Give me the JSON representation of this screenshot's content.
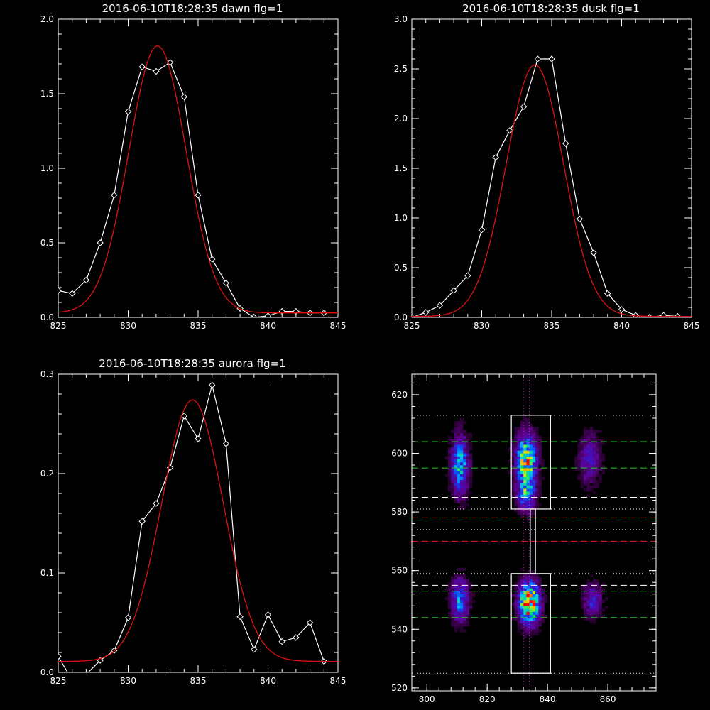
{
  "colors": {
    "background": "#000000",
    "axes": "#ffffff",
    "data_line": "#ffffff",
    "fit_line": "#dd1111",
    "marker": "#ffffff",
    "guide_green": "#22cc22",
    "guide_white": "#ffffff",
    "guide_red": "#dd2222",
    "guide_magenta": "#dd44dd",
    "box": "#ffffff"
  },
  "chart_data": [
    {
      "type": "line",
      "title": "2016-06-10T18:28:35 dawn flg=1",
      "xlim": [
        825,
        845
      ],
      "ylim": [
        0,
        2.0
      ],
      "xticks": [
        "825",
        "830",
        "835",
        "840",
        "845"
      ],
      "yticks": [
        "0.0",
        "0.5",
        "1.0",
        "1.5",
        "2.0"
      ],
      "grid": false,
      "series": [
        {
          "role": "data",
          "style": "line-diamond",
          "x": [
            825,
            826,
            827,
            828,
            829,
            830,
            831,
            832,
            833,
            834,
            835,
            836,
            837,
            838,
            839,
            840,
            841,
            842,
            843,
            844
          ],
          "y": [
            0.18,
            0.16,
            0.25,
            0.5,
            0.82,
            1.38,
            1.68,
            1.65,
            1.71,
            1.48,
            0.82,
            0.39,
            0.23,
            0.06,
            0.0,
            0.01,
            0.04,
            0.04,
            0.03,
            0.03
          ]
        },
        {
          "role": "fit",
          "style": "gaussian",
          "amplitude": 1.79,
          "center": 832.1,
          "sigma": 2.05,
          "offset": 0.03
        }
      ]
    },
    {
      "type": "line",
      "title": "2016-06-10T18:28:35 dusk flg=1",
      "xlim": [
        825,
        845
      ],
      "ylim": [
        0,
        3.0
      ],
      "xticks": [
        "825",
        "830",
        "835",
        "840",
        "845"
      ],
      "yticks": [
        "0.0",
        "0.5",
        "1.0",
        "1.5",
        "2.0",
        "2.5",
        "3.0"
      ],
      "grid": false,
      "series": [
        {
          "role": "data",
          "style": "line-diamond",
          "x": [
            825,
            826,
            827,
            828,
            829,
            830,
            831,
            832,
            833,
            834,
            835,
            836,
            837,
            838,
            839,
            840,
            841,
            842,
            843,
            844
          ],
          "y": [
            0.0,
            0.05,
            0.12,
            0.27,
            0.42,
            0.88,
            1.61,
            1.88,
            2.12,
            2.6,
            2.6,
            1.75,
            0.99,
            0.65,
            0.24,
            0.08,
            0.02,
            0.0,
            0.02,
            0.01
          ]
        },
        {
          "role": "fit",
          "style": "gaussian",
          "amplitude": 2.53,
          "center": 833.8,
          "sigma": 2.05,
          "offset": 0.01
        }
      ]
    },
    {
      "type": "line",
      "title": "2016-06-10T18:28:35 aurora flg=1",
      "xlim": [
        825,
        845
      ],
      "ylim": [
        0,
        0.3
      ],
      "xticks": [
        "825",
        "830",
        "835",
        "840",
        "845"
      ],
      "yticks": [
        "0.0",
        "0.1",
        "0.2",
        "0.3"
      ],
      "grid": false,
      "series": [
        {
          "role": "data",
          "style": "line-diamond",
          "x": [
            825,
            826,
            827,
            828,
            829,
            830,
            831,
            832,
            833,
            834,
            835,
            836,
            837,
            838,
            839,
            840,
            841,
            842,
            843,
            844
          ],
          "y": [
            0.016,
            -0.008,
            -0.002,
            0.012,
            0.022,
            0.055,
            0.152,
            0.17,
            0.206,
            0.258,
            0.235,
            0.289,
            0.23,
            0.056,
            0.023,
            0.058,
            0.031,
            0.035,
            0.05,
            0.011
          ]
        },
        {
          "role": "fit",
          "style": "gaussian",
          "amplitude": 0.263,
          "center": 834.6,
          "sigma": 2.2,
          "offset": 0.011
        }
      ]
    },
    {
      "type": "heatmap",
      "title": "",
      "xlim": [
        795,
        876
      ],
      "ylim": [
        519,
        627
      ],
      "xticks": [
        "800",
        "820",
        "840",
        "860"
      ],
      "yticks": [
        "520",
        "540",
        "560",
        "580",
        "600",
        "620"
      ],
      "grid": false,
      "colormap": "rainbow",
      "blobs": [
        {
          "x": 811,
          "y": 596,
          "sx": 2.0,
          "sy": 7,
          "amp": 0.55
        },
        {
          "x": 811,
          "y": 550,
          "sx": 2.0,
          "sy": 5,
          "amp": 0.5
        },
        {
          "x": 833,
          "y": 598,
          "sx": 2.3,
          "sy": 6,
          "amp": 0.82
        },
        {
          "x": 833,
          "y": 586,
          "sx": 2.0,
          "sy": 4,
          "amp": 0.5
        },
        {
          "x": 834,
          "y": 549,
          "sx": 2.3,
          "sy": 5,
          "amp": 1.0
        },
        {
          "x": 854,
          "y": 598,
          "sx": 2.5,
          "sy": 6,
          "amp": 0.3
        },
        {
          "x": 855,
          "y": 550,
          "sx": 2.2,
          "sy": 4,
          "amp": 0.32
        }
      ],
      "hlines": [
        {
          "y": 613,
          "style": "dotted",
          "color": "white"
        },
        {
          "y": 604,
          "style": "dashed",
          "color": "green"
        },
        {
          "y": 595,
          "style": "dashed",
          "color": "green"
        },
        {
          "y": 585,
          "style": "dashed",
          "color": "white"
        },
        {
          "y": 581,
          "style": "dotted",
          "color": "white"
        },
        {
          "y": 578,
          "style": "dashed",
          "color": "red"
        },
        {
          "y": 574,
          "style": "dotted",
          "color": "white"
        },
        {
          "y": 570,
          "style": "dashed",
          "color": "red"
        },
        {
          "y": 559,
          "style": "dotted",
          "color": "white"
        },
        {
          "y": 555,
          "style": "dashed",
          "color": "white"
        },
        {
          "y": 553,
          "style": "dashed",
          "color": "green"
        },
        {
          "y": 544,
          "style": "dashed",
          "color": "green"
        },
        {
          "y": 525,
          "style": "dotted",
          "color": "white"
        }
      ],
      "vlines": [
        {
          "x": 832,
          "style": "dotted",
          "color": "magenta"
        },
        {
          "x": 834,
          "style": "dotted",
          "color": "magenta"
        }
      ],
      "boxes": [
        {
          "x0": 828,
          "x1": 841,
          "y0": 581,
          "y1": 613
        },
        {
          "x0": 828,
          "x1": 841,
          "y0": 525,
          "y1": 559
        },
        {
          "x0": 834.3,
          "x1": 836,
          "y0": 559,
          "y1": 581
        }
      ]
    }
  ]
}
